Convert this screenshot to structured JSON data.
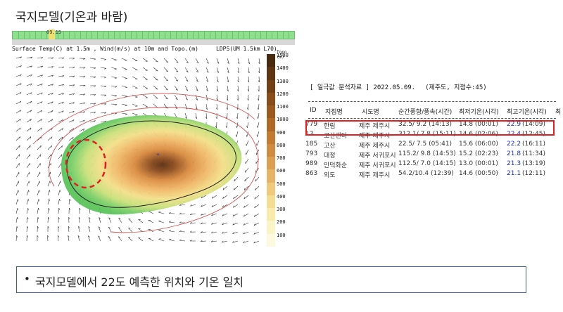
{
  "title": "국지모델(기온과 바람)",
  "model": {
    "time": "09.15",
    "header_left": "Surface Temp(C) at 1.5m , Wind(m/s) at 10m and Topo.(m)",
    "header_right": "LDPS(UM 1.5km L70)",
    "unit_label": "Topo.(m)",
    "colorbar_labels": [
      "1500",
      "1400",
      "1300",
      "1200",
      "1100",
      "1000",
      "900",
      "800",
      "700",
      "600",
      "500",
      "400",
      "300",
      "200",
      "100"
    ],
    "colors": {
      "contour": "#d85050",
      "circle": "#e02020",
      "coast": "#222222"
    }
  },
  "table": {
    "title": "[ 일극값 분석자료 ] 2022.05.09.",
    "meta": "(제주도, 지점수:45)",
    "headers": [
      "ID",
      "지점명",
      "시도명",
      "순간풍향/풍속(시간)",
      "최저기온(시각)",
      "최고기온(시각)",
      "최"
    ],
    "rows": [
      {
        "id": "779",
        "name": "한림",
        "region": "제주 제주시",
        "wind": "32.5/ 9.2 (14:13)",
        "tmin": "14.8 (00:01)",
        "tmax": "22.9",
        "tmax_time": "(14:09)"
      },
      {
        "id": "13",
        "name": "고산센터",
        "region": "제주 제주시",
        "wind": "312.1/ 7.8 (15:11)",
        "tmin": "14.6 (02:06)",
        "tmax": "22.4",
        "tmax_time": "(12:45)"
      },
      {
        "id": "185",
        "name": "고산",
        "region": "제주 제주시",
        "wind": "22.5/ 7.5 (05:41)",
        "tmin": "15.6 (06:00)",
        "tmax": "22.2",
        "tmax_time": "(16:11)"
      },
      {
        "id": "793",
        "name": "대정",
        "region": "제주 서귀포시",
        "wind": "115.2/ 9.8 (14:53)",
        "tmin": "15.2 (02:23)",
        "tmax": "21.8",
        "tmax_time": "(11:34)"
      },
      {
        "id": "989",
        "name": "안덕화순",
        "region": "제주 서귀포시",
        "wind": "112.5/ 7.0 (14:15)",
        "tmin": "13.0 (00:01)",
        "tmax": "21.3",
        "tmax_time": "(13:19)"
      },
      {
        "id": "863",
        "name": "외도",
        "region": "제주 제주시",
        "wind": "54.2/10.4 (12:39)",
        "tmin": "14.6 (00:50)",
        "tmax": "21.1",
        "tmax_time": "(12:11)"
      }
    ]
  },
  "note": "국지모델에서 22도 예측한 위치와 기온 일치"
}
